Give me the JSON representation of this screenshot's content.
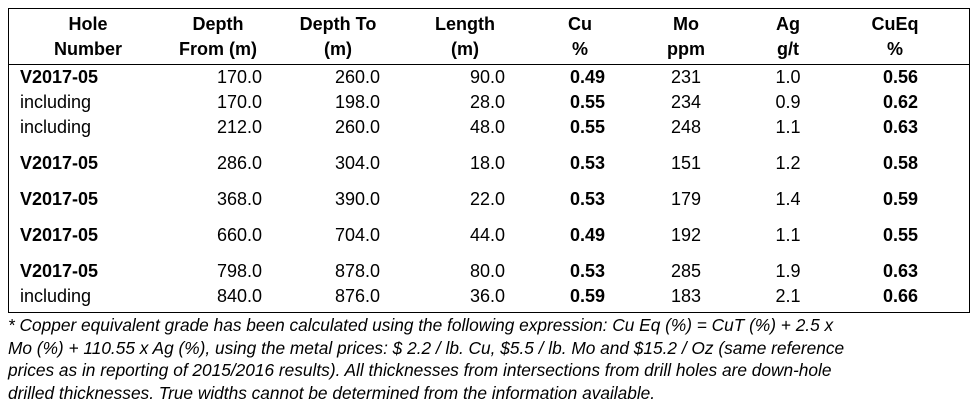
{
  "table": {
    "headers": [
      [
        "Hole",
        "Number"
      ],
      [
        "Depth",
        "From (m)"
      ],
      [
        "Depth To",
        "(m)"
      ],
      [
        "Length",
        "(m)"
      ],
      [
        "Cu",
        "%"
      ],
      [
        "Mo",
        "ppm"
      ],
      [
        "Ag",
        "g/t"
      ],
      [
        "CuEq",
        "%"
      ]
    ],
    "rows": [
      [
        "V2017-05",
        "170.0",
        "260.0",
        "90.0",
        "0.49",
        "231",
        "1.0",
        "0.56"
      ],
      [
        "including",
        "170.0",
        "198.0",
        "28.0",
        "0.55",
        "234",
        "0.9",
        "0.62"
      ],
      [
        "including",
        "212.0",
        "260.0",
        "48.0",
        "0.55",
        "248",
        "1.1",
        "0.63"
      ],
      [
        "V2017-05",
        "286.0",
        "304.0",
        "18.0",
        "0.53",
        "151",
        "1.2",
        "0.58"
      ],
      [
        "V2017-05",
        "368.0",
        "390.0",
        "22.0",
        "0.53",
        "179",
        "1.4",
        "0.59"
      ],
      [
        "V2017-05",
        "660.0",
        "704.0",
        "44.0",
        "0.49",
        "192",
        "1.1",
        "0.55"
      ],
      [
        "V2017-05",
        "798.0",
        "878.0",
        "80.0",
        "0.53",
        "285",
        "1.9",
        "0.63"
      ],
      [
        "including",
        "840.0",
        "876.0",
        "36.0",
        "0.59",
        "183",
        "2.1",
        "0.66"
      ]
    ]
  },
  "footnote": [
    "* Copper equivalent grade has been calculated using the following expression: Cu Eq (%) = CuT (%) + 2.5 x",
    "Mo (%) + 110.55 x Ag (%), using the metal prices: $ 2.2 / lb. Cu, $5.5 / lb. Mo and $15.2 / Oz (same reference",
    "prices as in reporting of 2015/2016 results). All thicknesses from intersections from drill holes are down-hole",
    "drilled thicknesses. True widths cannot be determined from the information available."
  ]
}
